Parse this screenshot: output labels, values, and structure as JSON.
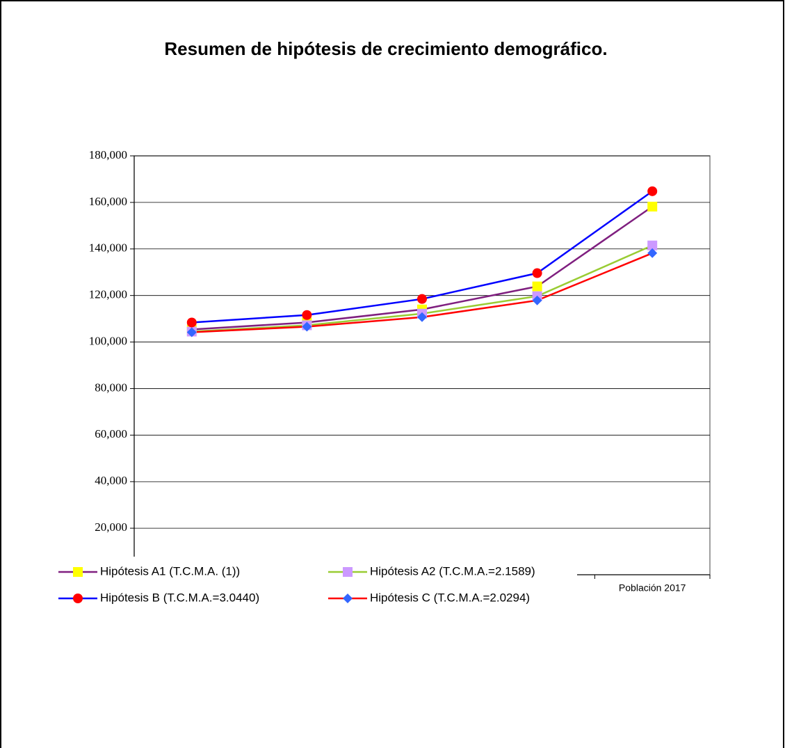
{
  "chart_data": {
    "type": "line",
    "title": "Resumen de hipótesis de crecimiento demográfico.",
    "categories": [
      null,
      null,
      null,
      null,
      "Población 2017"
    ],
    "series": [
      {
        "name": "Hipótesis A1 (T.C.M.A. (1))",
        "color": "#7f1f7f",
        "marker": "square",
        "marker_color": "#ffff00",
        "values": [
          105400,
          108400,
          114000,
          123900,
          158200
        ]
      },
      {
        "name": "Hipótesis A2 (T.C.M.A.=2.1589)",
        "color": "#99cc33",
        "marker": "square",
        "marker_color": "#cc99ff",
        "values": [
          104500,
          107200,
          112200,
          119700,
          141500
        ]
      },
      {
        "name": "Hipótesis B (T.C.M.A.=3.0440)",
        "color": "#0000ff",
        "marker": "circle",
        "marker_color": "#ff0000",
        "values": [
          108400,
          111600,
          118500,
          129600,
          164800
        ]
      },
      {
        "name": "Hipótesis C (T.C.M.A.=2.0294)",
        "color": "#ff0000",
        "marker": "diamond",
        "marker_color": "#3366ff",
        "values": [
          104200,
          106600,
          110700,
          117900,
          138200
        ]
      }
    ],
    "ylim": [
      0,
      180000
    ],
    "yticks": [
      {
        "value": 20000,
        "label": "20,000"
      },
      {
        "value": 40000,
        "label": "40,000"
      },
      {
        "value": 60000,
        "label": "60,000"
      },
      {
        "value": 80000,
        "label": "80,000"
      },
      {
        "value": 100000,
        "label": "100,000"
      },
      {
        "value": 120000,
        "label": "120,000"
      },
      {
        "value": 140000,
        "label": "140,000"
      },
      {
        "value": 160000,
        "label": "160,000"
      },
      {
        "value": 180000,
        "label": "180,000"
      }
    ],
    "grid": true
  }
}
